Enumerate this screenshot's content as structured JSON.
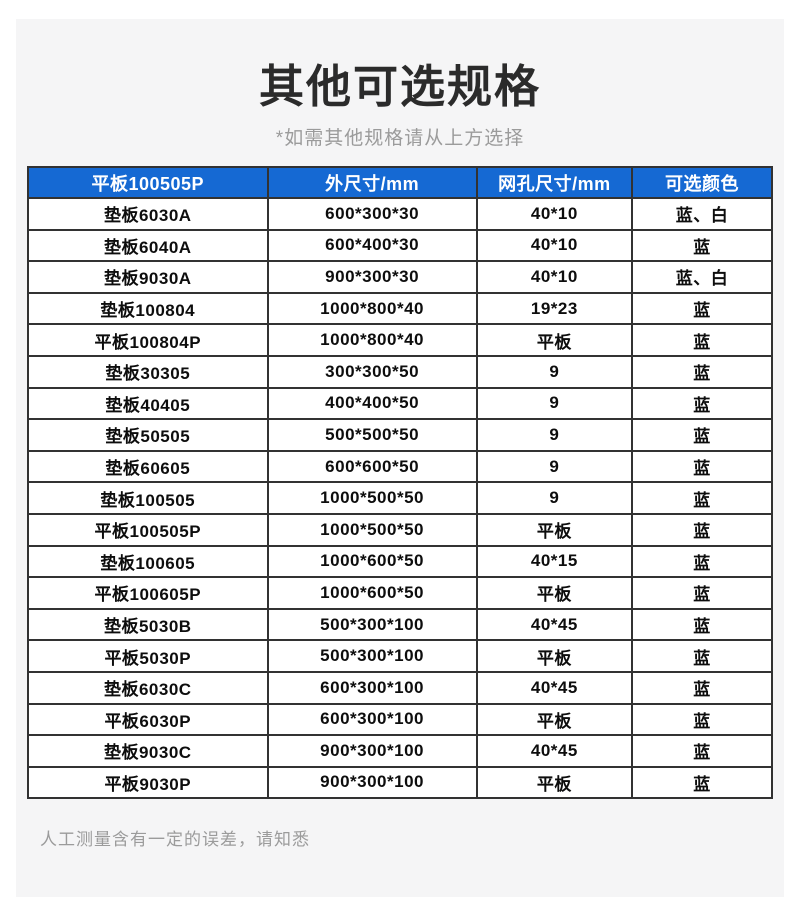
{
  "page": {
    "title": "其他可选规格",
    "subtitle": "*如需其他规格请从上方选择",
    "footer_note": "人工测量含有一定的误差，请知悉"
  },
  "colors": {
    "header_bg": "#1569d3",
    "header_text": "#ffffff",
    "card_bg": "#f5f5f6",
    "table_border": "#323232",
    "title_text": "#2b2b2b",
    "muted_text": "#9b9b9b",
    "cell_text": "#0d0d0d"
  },
  "table": {
    "headers": [
      "平板100505P",
      "外尺寸/mm",
      "网孔尺寸/mm",
      "可选颜色"
    ],
    "rows": [
      [
        "垫板6030A",
        "600*300*30",
        "40*10",
        "蓝、白"
      ],
      [
        "垫板6040A",
        "600*400*30",
        "40*10",
        "蓝"
      ],
      [
        "垫板9030A",
        "900*300*30",
        "40*10",
        "蓝、白"
      ],
      [
        "垫板100804",
        "1000*800*40",
        "19*23",
        "蓝"
      ],
      [
        "平板100804P",
        "1000*800*40",
        "平板",
        "蓝"
      ],
      [
        "垫板30305",
        "300*300*50",
        "9",
        "蓝"
      ],
      [
        "垫板40405",
        "400*400*50",
        "9",
        "蓝"
      ],
      [
        "垫板50505",
        "500*500*50",
        "9",
        "蓝"
      ],
      [
        "垫板60605",
        "600*600*50",
        "9",
        "蓝"
      ],
      [
        "垫板100505",
        "1000*500*50",
        "9",
        "蓝"
      ],
      [
        "平板100505P",
        "1000*500*50",
        "平板",
        "蓝"
      ],
      [
        "垫板100605",
        "1000*600*50",
        "40*15",
        "蓝"
      ],
      [
        "平板100605P",
        "1000*600*50",
        "平板",
        "蓝"
      ],
      [
        "垫板5030B",
        "500*300*100",
        "40*45",
        "蓝"
      ],
      [
        "平板5030P",
        "500*300*100",
        "平板",
        "蓝"
      ],
      [
        "垫板6030C",
        "600*300*100",
        "40*45",
        "蓝"
      ],
      [
        "平板6030P",
        "600*300*100",
        "平板",
        "蓝"
      ],
      [
        "垫板9030C",
        "900*300*100",
        "40*45",
        "蓝"
      ],
      [
        "平板9030P",
        "900*300*100",
        "平板",
        "蓝"
      ]
    ]
  }
}
